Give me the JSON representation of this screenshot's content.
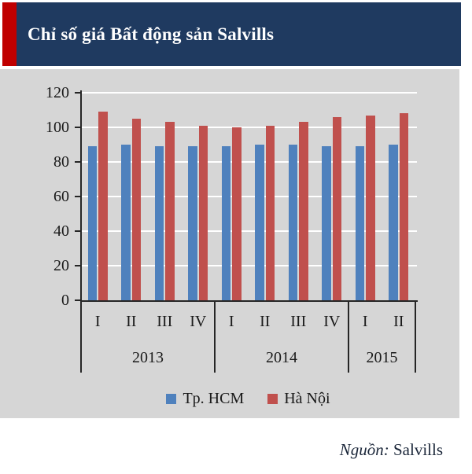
{
  "colors": {
    "accent": "#C00000",
    "header_bg": "#1F3A60",
    "panel_bg": "#D6D6D6",
    "axis": "#262626",
    "text": "#1A1A1A",
    "grid": "#FFFFFF",
    "source_text": "#1A2639"
  },
  "header": {
    "title": "Chỉ số giá Bất động sản Salvills"
  },
  "chart_data": {
    "type": "bar",
    "title": "Chỉ số giá Bất động sản Salvills",
    "categories": [
      "I",
      "II",
      "III",
      "IV",
      "I",
      "II",
      "III",
      "IV",
      "I",
      "II"
    ],
    "year_groups": [
      {
        "label": "2013",
        "span": 4
      },
      {
        "label": "2014",
        "span": 4
      },
      {
        "label": "2015",
        "span": 2
      }
    ],
    "series": [
      {
        "name": "Tp. HCM",
        "color": "#4F81BD",
        "values": [
          89,
          90,
          89,
          89,
          89,
          90,
          90,
          89,
          89,
          90
        ]
      },
      {
        "name": "Hà Nội",
        "color": "#C0504D",
        "values": [
          109,
          105,
          103,
          101,
          100,
          101,
          103,
          106,
          107,
          108
        ]
      }
    ],
    "xlabel": "",
    "ylabel": "",
    "ylim": [
      0,
      120
    ],
    "yticks": [
      0,
      20,
      40,
      60,
      80,
      100,
      120
    ],
    "grid": true,
    "legend_position": "bottom"
  },
  "source": {
    "label": "Nguồn:",
    "value": "Salvills"
  }
}
